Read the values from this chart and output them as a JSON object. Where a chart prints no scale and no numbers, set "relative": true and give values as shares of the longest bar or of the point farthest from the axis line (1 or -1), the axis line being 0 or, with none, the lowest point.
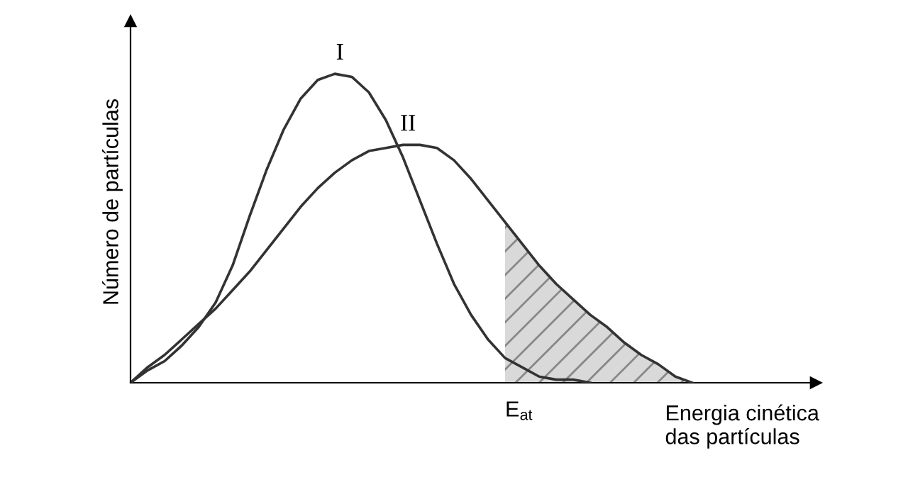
{
  "chart_data": {
    "type": "line",
    "relative": true,
    "ylabel": "Número de partículas",
    "xlabel": "Energia cinética\ndas partículas",
    "categories": [
      null,
      null,
      null,
      null,
      null,
      null,
      null,
      null,
      null,
      null,
      null,
      null,
      null,
      null,
      null,
      null,
      null,
      null,
      null,
      null,
      null,
      null,
      null,
      null,
      null,
      null,
      null,
      null,
      null,
      null,
      null,
      null,
      null,
      null,
      null,
      null,
      null,
      null,
      null,
      null
    ],
    "series": [
      {
        "name": "I",
        "color": "#333333",
        "values": [
          0,
          0.04,
          0.07,
          0.12,
          0.18,
          0.26,
          0.38,
          0.54,
          0.69,
          0.82,
          0.92,
          0.98,
          1.0,
          0.99,
          0.94,
          0.85,
          0.73,
          0.59,
          0.45,
          0.32,
          0.22,
          0.14,
          0.08,
          0.05,
          0.02,
          0.01,
          0.01,
          0,
          null,
          null,
          null,
          null,
          null,
          null,
          null,
          null,
          null,
          null,
          null,
          null
        ]
      },
      {
        "name": "II",
        "color": "#333333",
        "values": [
          0,
          0.05,
          0.09,
          0.14,
          0.19,
          0.24,
          0.3,
          0.36,
          0.43,
          0.5,
          0.57,
          0.63,
          0.68,
          0.72,
          0.75,
          0.76,
          0.77,
          0.77,
          0.76,
          0.72,
          0.66,
          0.59,
          0.52,
          0.45,
          0.38,
          0.32,
          0.27,
          0.22,
          0.18,
          0.13,
          0.09,
          0.06,
          0.02,
          0,
          null,
          null,
          null,
          null,
          null,
          null
        ]
      },
      {
        "type": "area",
        "color": "#d9d9d9",
        "values": [
          null,
          null,
          null,
          null,
          null,
          null,
          null,
          null,
          null,
          null,
          null,
          null,
          null,
          null,
          null,
          null,
          null,
          null,
          null,
          null,
          null,
          null,
          0.52,
          0.45,
          0.38,
          0.32,
          0.27,
          0.22,
          0.18,
          0.13,
          0.09,
          0.06,
          0.02,
          0,
          null,
          null,
          null,
          null,
          null,
          null
        ]
      }
    ],
    "annotations": [
      "E$_{at}$"
    ],
    "data_labels": false
  }
}
